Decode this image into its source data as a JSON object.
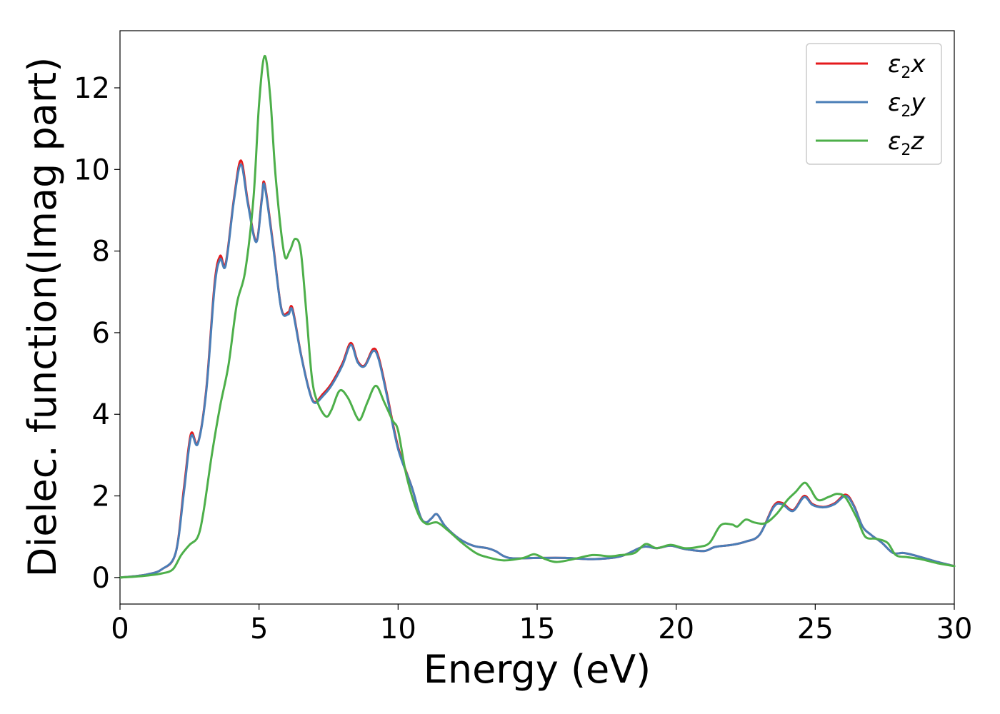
{
  "chart_data": {
    "type": "line",
    "title": "",
    "xlabel": "Energy (eV)",
    "ylabel": "Dielec. function(Imag part)",
    "xlim": [
      0,
      30
    ],
    "ylim": [
      -0.65,
      13.4
    ],
    "xticks": [
      0,
      5,
      10,
      15,
      20,
      25,
      30
    ],
    "xtick_labels": [
      "0",
      "5",
      "10",
      "15",
      "20",
      "25",
      "30"
    ],
    "yticks": [
      0,
      2,
      4,
      6,
      8,
      10,
      12
    ],
    "ytick_labels": [
      "0",
      "2",
      "4",
      "6",
      "8",
      "10",
      "12"
    ],
    "grid": false,
    "legend_position": "top-right",
    "series": [
      {
        "name": "ε2x",
        "legend": {
          "symbol": "ε",
          "sub": "2",
          "suffix": "x"
        },
        "color": "#e41a1c",
        "points": [
          [
            0,
            0
          ],
          [
            0.5,
            0.03
          ],
          [
            1,
            0.08
          ],
          [
            1.5,
            0.2
          ],
          [
            2,
            0.6
          ],
          [
            2.3,
            2.2
          ],
          [
            2.55,
            3.52
          ],
          [
            2.8,
            3.3
          ],
          [
            3.1,
            4.6
          ],
          [
            3.4,
            7.2
          ],
          [
            3.6,
            7.88
          ],
          [
            3.8,
            7.7
          ],
          [
            4.1,
            9.3
          ],
          [
            4.35,
            10.22
          ],
          [
            4.6,
            9.2
          ],
          [
            4.9,
            8.25
          ],
          [
            5.1,
            9.3
          ],
          [
            5.2,
            9.65
          ],
          [
            5.5,
            8.2
          ],
          [
            5.8,
            6.6
          ],
          [
            6.05,
            6.5
          ],
          [
            6.2,
            6.6
          ],
          [
            6.5,
            5.5
          ],
          [
            6.8,
            4.6
          ],
          [
            7.0,
            4.3
          ],
          [
            7.3,
            4.5
          ],
          [
            7.6,
            4.75
          ],
          [
            8.0,
            5.25
          ],
          [
            8.3,
            5.75
          ],
          [
            8.55,
            5.3
          ],
          [
            8.8,
            5.2
          ],
          [
            9.1,
            5.6
          ],
          [
            9.3,
            5.4
          ],
          [
            9.6,
            4.5
          ],
          [
            10.0,
            3.2
          ],
          [
            10.5,
            2.2
          ],
          [
            10.8,
            1.5
          ],
          [
            11.0,
            1.35
          ],
          [
            11.2,
            1.45
          ],
          [
            11.4,
            1.55
          ],
          [
            11.7,
            1.25
          ],
          [
            12.2,
            0.95
          ],
          [
            12.7,
            0.78
          ],
          [
            13.2,
            0.72
          ],
          [
            13.5,
            0.65
          ],
          [
            14.0,
            0.48
          ],
          [
            15.0,
            0.48
          ],
          [
            16.0,
            0.48
          ],
          [
            17.0,
            0.45
          ],
          [
            18.0,
            0.52
          ],
          [
            18.8,
            0.75
          ],
          [
            19.3,
            0.72
          ],
          [
            19.8,
            0.78
          ],
          [
            20.3,
            0.7
          ],
          [
            21.0,
            0.65
          ],
          [
            21.4,
            0.75
          ],
          [
            22.0,
            0.8
          ],
          [
            22.5,
            0.88
          ],
          [
            23.0,
            1.05
          ],
          [
            23.5,
            1.75
          ],
          [
            23.8,
            1.83
          ],
          [
            24.2,
            1.65
          ],
          [
            24.6,
            2.0
          ],
          [
            24.9,
            1.8
          ],
          [
            25.3,
            1.73
          ],
          [
            25.7,
            1.82
          ],
          [
            26.1,
            2.03
          ],
          [
            26.4,
            1.75
          ],
          [
            26.7,
            1.25
          ],
          [
            27.0,
            1.05
          ],
          [
            27.4,
            0.85
          ],
          [
            27.8,
            0.6
          ],
          [
            28.2,
            0.6
          ],
          [
            28.8,
            0.5
          ],
          [
            29.4,
            0.38
          ],
          [
            30,
            0.28
          ]
        ]
      },
      {
        "name": "ε2y",
        "legend": {
          "symbol": "ε",
          "sub": "2",
          "suffix": "y"
        },
        "color": "#4a7eb7",
        "points": [
          [
            0,
            0
          ],
          [
            0.5,
            0.03
          ],
          [
            1,
            0.08
          ],
          [
            1.5,
            0.2
          ],
          [
            2,
            0.6
          ],
          [
            2.3,
            2.1
          ],
          [
            2.55,
            3.45
          ],
          [
            2.8,
            3.28
          ],
          [
            3.1,
            4.55
          ],
          [
            3.4,
            7.1
          ],
          [
            3.6,
            7.8
          ],
          [
            3.8,
            7.65
          ],
          [
            4.1,
            9.25
          ],
          [
            4.35,
            10.12
          ],
          [
            4.6,
            9.15
          ],
          [
            4.9,
            8.22
          ],
          [
            5.1,
            9.25
          ],
          [
            5.2,
            9.6
          ],
          [
            5.5,
            8.15
          ],
          [
            5.8,
            6.58
          ],
          [
            6.05,
            6.45
          ],
          [
            6.2,
            6.55
          ],
          [
            6.5,
            5.48
          ],
          [
            6.8,
            4.58
          ],
          [
            7.0,
            4.28
          ],
          [
            7.3,
            4.45
          ],
          [
            7.6,
            4.7
          ],
          [
            8.0,
            5.2
          ],
          [
            8.3,
            5.7
          ],
          [
            8.55,
            5.27
          ],
          [
            8.8,
            5.18
          ],
          [
            9.1,
            5.55
          ],
          [
            9.3,
            5.35
          ],
          [
            9.6,
            4.45
          ],
          [
            10.0,
            3.15
          ],
          [
            10.5,
            2.2
          ],
          [
            10.8,
            1.5
          ],
          [
            11.0,
            1.35
          ],
          [
            11.2,
            1.45
          ],
          [
            11.4,
            1.55
          ],
          [
            11.7,
            1.25
          ],
          [
            12.2,
            0.95
          ],
          [
            12.7,
            0.78
          ],
          [
            13.2,
            0.72
          ],
          [
            13.5,
            0.65
          ],
          [
            14.0,
            0.48
          ],
          [
            15.0,
            0.48
          ],
          [
            16.0,
            0.48
          ],
          [
            17.0,
            0.45
          ],
          [
            18.0,
            0.52
          ],
          [
            18.8,
            0.75
          ],
          [
            19.3,
            0.72
          ],
          [
            19.8,
            0.78
          ],
          [
            20.3,
            0.7
          ],
          [
            21.0,
            0.65
          ],
          [
            21.4,
            0.75
          ],
          [
            22.0,
            0.8
          ],
          [
            22.5,
            0.88
          ],
          [
            23.0,
            1.05
          ],
          [
            23.5,
            1.72
          ],
          [
            23.8,
            1.8
          ],
          [
            24.2,
            1.63
          ],
          [
            24.6,
            1.97
          ],
          [
            24.9,
            1.78
          ],
          [
            25.3,
            1.72
          ],
          [
            25.7,
            1.8
          ],
          [
            26.1,
            2.0
          ],
          [
            26.4,
            1.73
          ],
          [
            26.7,
            1.25
          ],
          [
            27.0,
            1.05
          ],
          [
            27.4,
            0.85
          ],
          [
            27.8,
            0.6
          ],
          [
            28.2,
            0.6
          ],
          [
            28.8,
            0.5
          ],
          [
            29.4,
            0.38
          ],
          [
            30,
            0.28
          ]
        ]
      },
      {
        "name": "ε2z",
        "legend": {
          "symbol": "ε",
          "sub": "2",
          "suffix": "z"
        },
        "color": "#4daf4a",
        "points": [
          [
            0,
            0
          ],
          [
            0.5,
            0.02
          ],
          [
            1,
            0.05
          ],
          [
            1.5,
            0.1
          ],
          [
            1.9,
            0.2
          ],
          [
            2.2,
            0.55
          ],
          [
            2.5,
            0.8
          ],
          [
            2.8,
            1.0
          ],
          [
            3.0,
            1.6
          ],
          [
            3.3,
            3.0
          ],
          [
            3.6,
            4.2
          ],
          [
            3.9,
            5.2
          ],
          [
            4.2,
            6.7
          ],
          [
            4.5,
            7.5
          ],
          [
            4.8,
            9.3
          ],
          [
            5.0,
            11.6
          ],
          [
            5.2,
            12.78
          ],
          [
            5.4,
            11.8
          ],
          [
            5.6,
            9.8
          ],
          [
            5.9,
            7.95
          ],
          [
            6.1,
            8.0
          ],
          [
            6.3,
            8.3
          ],
          [
            6.5,
            8.0
          ],
          [
            6.7,
            6.5
          ],
          [
            6.9,
            4.9
          ],
          [
            7.1,
            4.3
          ],
          [
            7.4,
            3.95
          ],
          [
            7.6,
            4.1
          ],
          [
            7.9,
            4.58
          ],
          [
            8.2,
            4.4
          ],
          [
            8.5,
            3.95
          ],
          [
            8.65,
            3.88
          ],
          [
            8.9,
            4.3
          ],
          [
            9.2,
            4.7
          ],
          [
            9.5,
            4.3
          ],
          [
            9.8,
            3.85
          ],
          [
            10.0,
            3.6
          ],
          [
            10.3,
            2.5
          ],
          [
            10.7,
            1.6
          ],
          [
            11.0,
            1.32
          ],
          [
            11.4,
            1.35
          ],
          [
            11.8,
            1.15
          ],
          [
            12.3,
            0.85
          ],
          [
            12.8,
            0.6
          ],
          [
            13.2,
            0.5
          ],
          [
            13.8,
            0.42
          ],
          [
            14.5,
            0.48
          ],
          [
            14.9,
            0.57
          ],
          [
            15.3,
            0.45
          ],
          [
            15.7,
            0.38
          ],
          [
            16.3,
            0.45
          ],
          [
            17.0,
            0.55
          ],
          [
            17.6,
            0.52
          ],
          [
            18.0,
            0.55
          ],
          [
            18.5,
            0.6
          ],
          [
            18.9,
            0.82
          ],
          [
            19.3,
            0.72
          ],
          [
            19.8,
            0.8
          ],
          [
            20.3,
            0.72
          ],
          [
            20.8,
            0.75
          ],
          [
            21.2,
            0.85
          ],
          [
            21.6,
            1.28
          ],
          [
            22.0,
            1.3
          ],
          [
            22.2,
            1.25
          ],
          [
            22.5,
            1.42
          ],
          [
            22.8,
            1.35
          ],
          [
            23.2,
            1.33
          ],
          [
            23.6,
            1.55
          ],
          [
            24.0,
            1.9
          ],
          [
            24.3,
            2.1
          ],
          [
            24.6,
            2.32
          ],
          [
            24.8,
            2.2
          ],
          [
            25.1,
            1.9
          ],
          [
            25.5,
            1.98
          ],
          [
            25.8,
            2.05
          ],
          [
            26.1,
            1.95
          ],
          [
            26.5,
            1.45
          ],
          [
            26.8,
            1.0
          ],
          [
            27.2,
            0.95
          ],
          [
            27.6,
            0.85
          ],
          [
            27.9,
            0.55
          ],
          [
            28.3,
            0.5
          ],
          [
            28.8,
            0.45
          ],
          [
            29.4,
            0.35
          ],
          [
            30,
            0.28
          ]
        ]
      }
    ]
  }
}
